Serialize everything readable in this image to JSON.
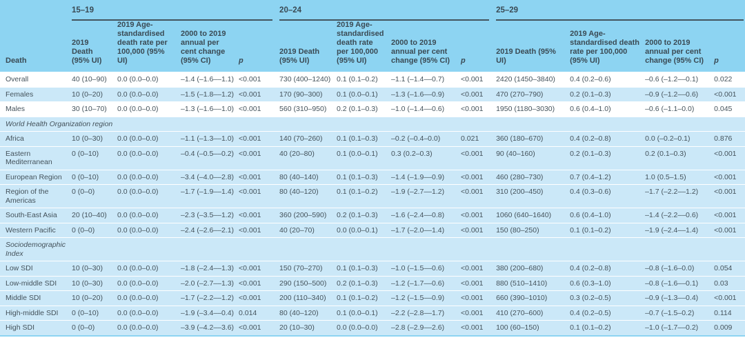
{
  "colors": {
    "panel_header_bg": "#8dd4f2",
    "row_stripe_bg": "#cbe8f8",
    "body_text": "#44525b",
    "header_text": "#3a4a54",
    "group_rule": "#44545e",
    "row_separator": "#ffffff",
    "bottom_border": "#8dd4f2"
  },
  "table": {
    "row_header_label": "Death",
    "age_groups": [
      {
        "label": "15–19",
        "cols": [
          "2019 Death (95% UI)",
          "2019 Age-standardised death rate per 100,000 (95% UI)",
          "2000 to 2019 annual per cent change (95% CI)",
          "p"
        ]
      },
      {
        "label": "20–24",
        "cols": [
          "2019 Death (95% UI)",
          "2019 Age-standardised death rate per 100,000 (95% UI)",
          "2000 to 2019 annual per cent change (95% CI)",
          "p"
        ]
      },
      {
        "label": "25–29",
        "cols": [
          "2019 Death (95% UI)",
          "2019 Age-standardised death rate per 100,000 (95% UI)",
          "2000 to 2019 annual per cent change (95% CI)",
          "p"
        ]
      }
    ],
    "rows": [
      {
        "type": "data",
        "shade": "white",
        "label": "Overall",
        "cells": [
          "40 (10–90)",
          "0.0 (0.0–0.0)",
          "–1.4 (–1.6––1.1)",
          "<0.001",
          "730 (400–1240)",
          "0.1 (0.1–0.2)",
          "–1.1 (–1.4––0.7)",
          "<0.001",
          "2420 (1450–3840)",
          "0.4 (0.2–0.6)",
          "–0.6 (–1.2––0.1)",
          "0.022"
        ]
      },
      {
        "type": "data",
        "shade": "blue",
        "label": "Females",
        "cells": [
          "10 (0–20)",
          "0.0 (0.0–0.0)",
          "–1.5 (–1.8––1.2)",
          "<0.001",
          "170 (90–300)",
          "0.1 (0.0–0.1)",
          "–1.3 (–1.6––0.9)",
          "<0.001",
          "470 (270–790)",
          "0.2 (0.1–0.3)",
          "–0.9 (–1.2––0.6)",
          "<0.001"
        ]
      },
      {
        "type": "data",
        "shade": "white",
        "label": "Males",
        "cells": [
          "30 (10–70)",
          "0.0 (0.0–0.0)",
          "–1.3 (–1.6––1.0)",
          "<0.001",
          "560 (310–950)",
          "0.2 (0.1–0.3)",
          "–1.0 (–1.4––0.6)",
          "<0.001",
          "1950 (1180–3030)",
          "0.6 (0.4–1.0)",
          "–0.6 (–1.1–0.0)",
          "0.045"
        ]
      },
      {
        "type": "section",
        "label": "World Health Organization region"
      },
      {
        "type": "data",
        "shade": "blue",
        "label": "Africa",
        "cells": [
          "10 (0–30)",
          "0.0 (0.0–0.0)",
          "–1.1 (–1.3––1.0)",
          "<0.001",
          "140 (70–260)",
          "0.1 (0.1–0.3)",
          "–0.2 (–0.4–0.0)",
          "0.021",
          "360 (180–670)",
          "0.4 (0.2–0.8)",
          "0.0 (–0.2–0.1)",
          "0.876"
        ]
      },
      {
        "type": "data",
        "shade": "blue",
        "label": "Eastern Mediterranean",
        "cells": [
          "0 (0–10)",
          "0.0 (0.0–0.0)",
          "–0.4 (–0.5––0.2)",
          "<0.001",
          "40 (20–80)",
          "0.1 (0.0–0.1)",
          "0.3 (0.2–0.3)",
          "<0.001",
          "90 (40–160)",
          "0.2 (0.1–0.3)",
          "0.2 (0.1–0.3)",
          "<0.001"
        ]
      },
      {
        "type": "data",
        "shade": "blue",
        "label": "European Region",
        "cells": [
          "0 (0–10)",
          "0.0 (0.0–0.0)",
          "–3.4 (–4.0––2.8)",
          "<0.001",
          "80 (40–140)",
          "0.1 (0.1–0.3)",
          "–1.4 (–1.9––0.9)",
          "<0.001",
          "460 (280–730)",
          "0.7 (0.4–1.2)",
          "1.0 (0.5–1.5)",
          "<0.001"
        ]
      },
      {
        "type": "data",
        "shade": "blue",
        "label": "Region of the Americas",
        "cells": [
          "0 (0–0)",
          "0.0 (0.0–0.0)",
          "–1.7 (–1.9––1.4)",
          "<0.001",
          "80 (40–120)",
          "0.1 (0.1–0.2)",
          "–1.9 (–2.7––1.2)",
          "<0.001",
          "310 (200–450)",
          "0.4 (0.3–0.6)",
          "–1.7 (–2.2––1.2)",
          "<0.001"
        ]
      },
      {
        "type": "data",
        "shade": "blue",
        "label": "South-East Asia",
        "cells": [
          "20 (10–40)",
          "0.0 (0.0–0.0)",
          "–2.3 (–3.5––1.2)",
          "<0.001",
          "360 (200–590)",
          "0.2 (0.1–0.3)",
          "–1.6 (–2.4––0.8)",
          "<0.001",
          "1060 (640–1640)",
          "0.6 (0.4–1.0)",
          "–1.4 (–2.2––0.6)",
          "<0.001"
        ]
      },
      {
        "type": "data",
        "shade": "blue",
        "label": "Western Pacific",
        "cells": [
          "0 (0–0)",
          "0.0 (0.0–0.0)",
          "–2.4 (–2.6––2.1)",
          "<0.001",
          "40 (20–70)",
          "0.0 (0.0–0.1)",
          "–1.7 (–2.0––1.4)",
          "<0.001",
          "150 (80–250)",
          "0.1 (0.1–0.2)",
          "–1.9 (–2.4––1.4)",
          "<0.001"
        ]
      },
      {
        "type": "section",
        "label": "Sociodemographic\nIndex"
      },
      {
        "type": "data",
        "shade": "blue",
        "label": "Low SDI",
        "cells": [
          "10 (0–30)",
          "0.0 (0.0–0.0)",
          "–1.8 (–2.4––1.3)",
          "<0.001",
          "150 (70–270)",
          "0.1 (0.1–0.3)",
          "–1.0 (–1.5––0.6)",
          "<0.001",
          "380 (200–680)",
          "0.4 (0.2–0.8)",
          "–0.8 (–1.6–0.0)",
          "0.054"
        ]
      },
      {
        "type": "data",
        "shade": "blue",
        "label": "Low-middle SDI",
        "cells": [
          "10 (0–30)",
          "0.0 (0.0–0.0)",
          "–2.0 (–2.7––1.3)",
          "<0.001",
          "290 (150–500)",
          "0.2 (0.1–0.3)",
          "–1.2 (–1.7––0.6)",
          "<0.001",
          "880 (510–1410)",
          "0.6 (0.3–1.0)",
          "–0.8 (–1.6––0.1)",
          "0.03"
        ]
      },
      {
        "type": "data",
        "shade": "blue",
        "label": "Middle SDI",
        "cells": [
          "10 (0–20)",
          "0.0 (0.0–0.0)",
          "–1.7 (–2.2––1.2)",
          "<0.001",
          "200 (110–340)",
          "0.1 (0.1–0.2)",
          "–1.2 (–1.5––0.9)",
          "<0.001",
          "660 (390–1010)",
          "0.3 (0.2–0.5)",
          "–0.9 (–1.3––0.4)",
          "<0.001"
        ]
      },
      {
        "type": "data",
        "shade": "blue",
        "label": "High-middle SDI",
        "cells": [
          "0 (0–10)",
          "0.0 (0.0–0.0)",
          "–1.9 (–3.4––0.4)",
          "0.014",
          "80 (40–120)",
          "0.1 (0.0–0.1)",
          "–2.2 (–2.8––1.7)",
          "<0.001",
          "410 (270–600)",
          "0.4 (0.2–0.5)",
          "–0.7 (–1.5–0.2)",
          "0.114"
        ]
      },
      {
        "type": "data",
        "shade": "blue",
        "label": "High SDI",
        "cells": [
          "0 (0–0)",
          "0.0 (0.0–0.0)",
          "–3.9 (–4.2––3.6)",
          "<0.001",
          "20 (10–30)",
          "0.0 (0.0–0.0)",
          "–2.8 (–2.9––2.6)",
          "<0.001",
          "100 (60–150)",
          "0.1 (0.1–0.2)",
          "–1.0 (–1.7––0.2)",
          "0.009"
        ]
      }
    ]
  }
}
